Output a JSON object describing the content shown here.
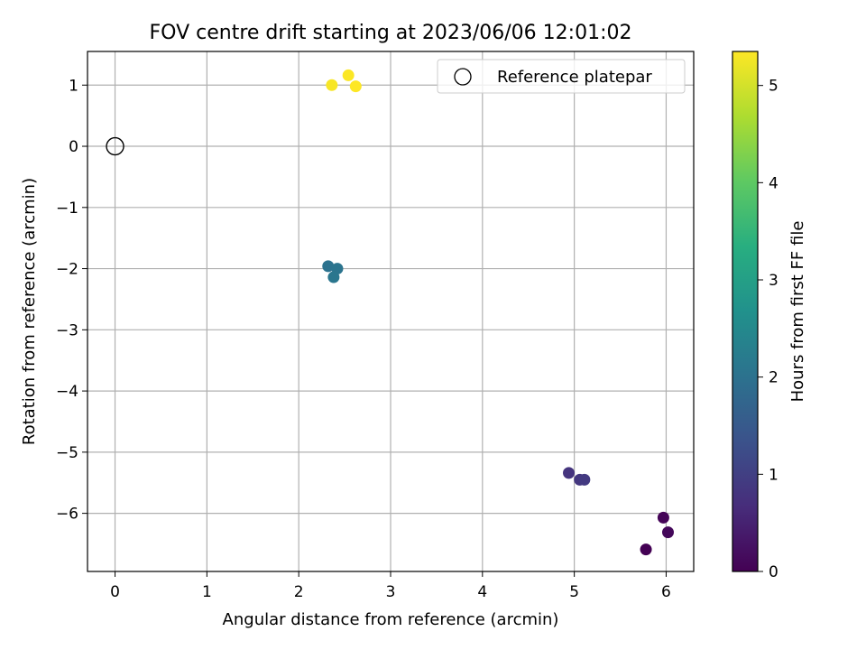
{
  "chart_data": {
    "type": "scatter",
    "title": "FOV centre drift starting at 2023/06/06 12:01:02",
    "xlabel": "Angular distance from reference (arcmin)",
    "ylabel": "Rotation from reference (arcmin)",
    "xlim": [
      -0.3,
      6.3
    ],
    "ylim": [
      -6.95,
      1.55
    ],
    "xticks": [
      0,
      1,
      2,
      3,
      4,
      5,
      6
    ],
    "yticks": [
      1,
      0,
      -1,
      -2,
      -3,
      -4,
      -5,
      -6
    ],
    "xtick_labels": [
      "0",
      "1",
      "2",
      "3",
      "4",
      "5",
      "6"
    ],
    "ytick_labels": [
      "1",
      "0",
      "−1",
      "−2",
      "−3",
      "−4",
      "−5",
      "−6"
    ],
    "grid": true,
    "legend": {
      "position": "top-right",
      "entries": [
        "Reference platepar"
      ]
    },
    "reference_point": {
      "x": 0,
      "y": 0
    },
    "colorbar": {
      "label": "Hours from first FF file",
      "range": [
        0,
        5.35
      ],
      "ticks": [
        0,
        1,
        2,
        3,
        4,
        5
      ],
      "tick_labels": [
        "0",
        "1",
        "2",
        "3",
        "4",
        "5"
      ],
      "colormap": "viridis"
    },
    "points": [
      {
        "x": 5.78,
        "y": -6.59,
        "hours": 0.0
      },
      {
        "x": 5.97,
        "y": -6.07,
        "hours": 0.05
      },
      {
        "x": 6.02,
        "y": -6.31,
        "hours": 0.1
      },
      {
        "x": 4.94,
        "y": -5.34,
        "hours": 0.8
      },
      {
        "x": 5.06,
        "y": -5.45,
        "hours": 0.85
      },
      {
        "x": 5.11,
        "y": -5.45,
        "hours": 0.9
      },
      {
        "x": 2.32,
        "y": -1.96,
        "hours": 2.0
      },
      {
        "x": 2.42,
        "y": -2.0,
        "hours": 2.05
      },
      {
        "x": 2.38,
        "y": -2.14,
        "hours": 2.1
      },
      {
        "x": 2.36,
        "y": 1.0,
        "hours": 5.3
      },
      {
        "x": 2.54,
        "y": 1.16,
        "hours": 5.33
      },
      {
        "x": 2.62,
        "y": 0.98,
        "hours": 5.35
      }
    ]
  }
}
